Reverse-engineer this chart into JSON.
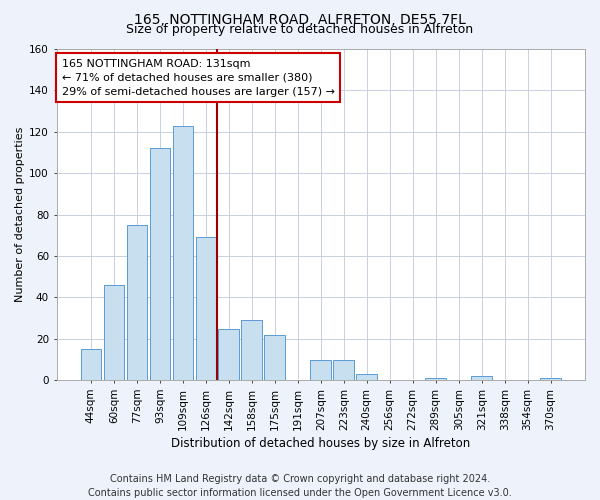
{
  "title": "165, NOTTINGHAM ROAD, ALFRETON, DE55 7FL",
  "subtitle": "Size of property relative to detached houses in Alfreton",
  "xlabel": "Distribution of detached houses by size in Alfreton",
  "ylabel": "Number of detached properties",
  "bar_labels": [
    "44sqm",
    "60sqm",
    "77sqm",
    "93sqm",
    "109sqm",
    "126sqm",
    "142sqm",
    "158sqm",
    "175sqm",
    "191sqm",
    "207sqm",
    "223sqm",
    "240sqm",
    "256sqm",
    "272sqm",
    "289sqm",
    "305sqm",
    "321sqm",
    "338sqm",
    "354sqm",
    "370sqm"
  ],
  "bar_values": [
    15,
    46,
    75,
    112,
    123,
    69,
    25,
    29,
    22,
    0,
    10,
    10,
    3,
    0,
    0,
    1,
    0,
    2,
    0,
    0,
    1
  ],
  "bar_color": "#c8dff0",
  "bar_edge_color": "#5b9bd5",
  "vline_x": 5.5,
  "vline_color": "#990000",
  "annotation_line1": "165 NOTTINGHAM ROAD: 131sqm",
  "annotation_line2": "← 71% of detached houses are smaller (380)",
  "annotation_line3": "29% of semi-detached houses are larger (157) →",
  "annotation_box_edge": "#cc0000",
  "ylim": [
    0,
    160
  ],
  "yticks": [
    0,
    20,
    40,
    60,
    80,
    100,
    120,
    140,
    160
  ],
  "footer_line1": "Contains HM Land Registry data © Crown copyright and database right 2024.",
  "footer_line2": "Contains public sector information licensed under the Open Government Licence v3.0.",
  "background_color": "#eef2fb",
  "plot_background": "#ffffff",
  "grid_color": "#c8d0e0",
  "title_fontsize": 10,
  "subtitle_fontsize": 9,
  "xlabel_fontsize": 8.5,
  "ylabel_fontsize": 8,
  "tick_fontsize": 7.5,
  "footer_fontsize": 7,
  "annotation_fontsize": 8
}
